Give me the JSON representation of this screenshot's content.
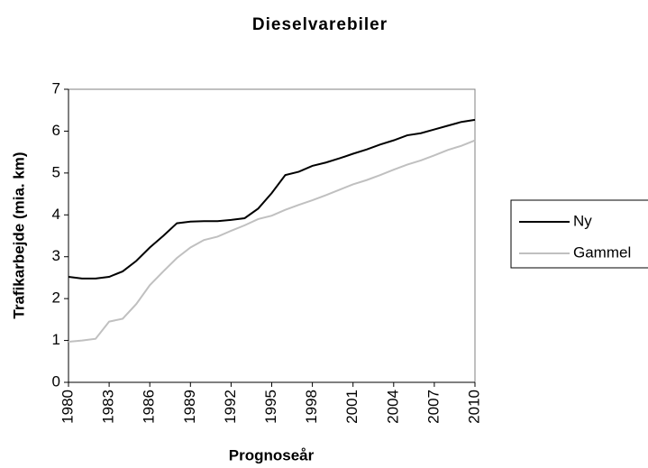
{
  "chart_data": {
    "type": "line",
    "title": "Dieselvarebiler",
    "x_label": "Prognoseår",
    "y_label": "Trafikarbejde (mia. km)",
    "x": [
      1980,
      1981,
      1982,
      1983,
      1984,
      1985,
      1986,
      1987,
      1988,
      1989,
      1990,
      1991,
      1992,
      1993,
      1994,
      1995,
      1996,
      1997,
      1998,
      1999,
      2000,
      2001,
      2002,
      2003,
      2004,
      2005,
      2006,
      2007,
      2008,
      2009,
      2010
    ],
    "series": [
      {
        "name": "Ny",
        "color": "#000000",
        "values": [
          2.52,
          2.48,
          2.48,
          2.52,
          2.65,
          2.9,
          3.22,
          3.5,
          3.8,
          3.84,
          3.85,
          3.85,
          3.88,
          3.92,
          4.15,
          4.52,
          4.95,
          5.03,
          5.17,
          5.25,
          5.35,
          5.46,
          5.56,
          5.68,
          5.78,
          5.9,
          5.95,
          6.04,
          6.13,
          6.22,
          6.27
        ]
      },
      {
        "name": "Gammel",
        "color": "#c0c0c0",
        "values": [
          0.97,
          1.0,
          1.04,
          1.45,
          1.52,
          1.87,
          2.32,
          2.65,
          2.97,
          3.22,
          3.4,
          3.48,
          3.62,
          3.75,
          3.9,
          3.98,
          4.12,
          4.24,
          4.35,
          4.47,
          4.6,
          4.73,
          4.83,
          4.95,
          5.08,
          5.2,
          5.3,
          5.42,
          5.55,
          5.65,
          5.78
        ]
      }
    ],
    "xlim": [
      1980,
      2010
    ],
    "xticks": [
      1980,
      1983,
      1986,
      1989,
      1992,
      1995,
      1998,
      2001,
      2004,
      2007,
      2010
    ],
    "ylim": [
      0,
      7
    ],
    "yticks": [
      0,
      1,
      2,
      3,
      4,
      5,
      6,
      7
    ],
    "legend": "right"
  }
}
